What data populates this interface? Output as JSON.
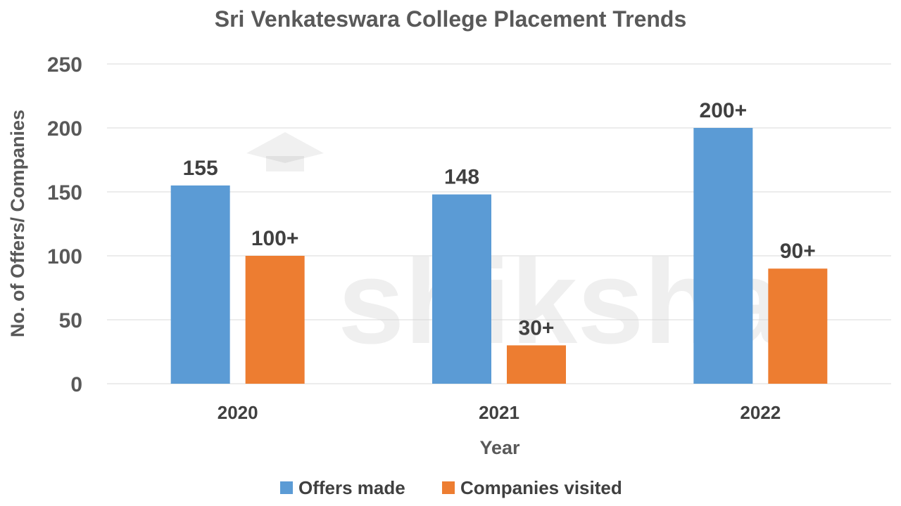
{
  "watermark_text": "shiksha",
  "chart_data": {
    "type": "bar",
    "title": "Sri Venkateswara College Placement Trends",
    "xlabel": "Year",
    "ylabel": "No. of Offers/ Companies",
    "categories": [
      "2020",
      "2021",
      "2022"
    ],
    "ylim": [
      0,
      250
    ],
    "yticks": [
      0,
      50,
      100,
      150,
      200,
      250
    ],
    "grid": true,
    "legend_position": "bottom",
    "series": [
      {
        "name": "Offers made",
        "color": "#5b9bd5",
        "values": [
          155,
          148,
          200
        ],
        "labels": [
          "155",
          "148",
          "200+"
        ]
      },
      {
        "name": "Companies visited",
        "color": "#ed7d31",
        "values": [
          100,
          30,
          90
        ],
        "labels": [
          "100+",
          "30+",
          "90+"
        ]
      }
    ]
  }
}
